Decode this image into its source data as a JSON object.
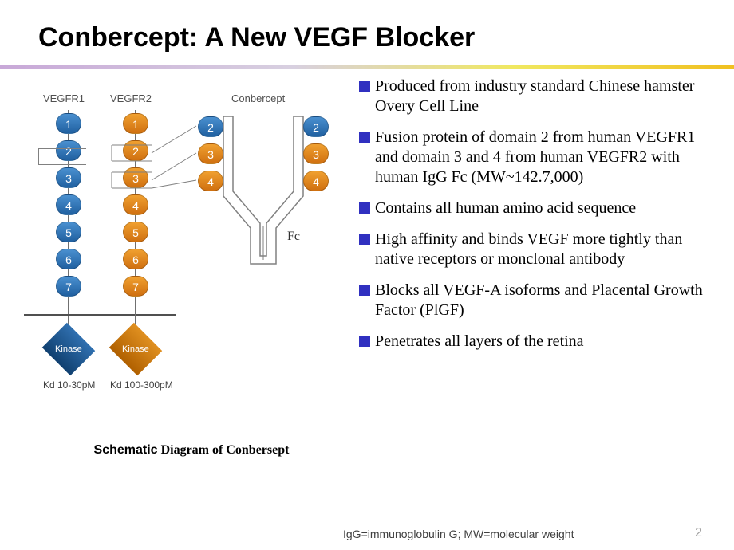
{
  "title": "Conbercept: A New VEGF Blocker",
  "divider_gradient": [
    "#c8a8d8",
    "#d8d0e0",
    "#f0e860",
    "#f0c020"
  ],
  "diagram": {
    "labels": {
      "vegfr1": "VEGFR1",
      "vegfr2": "VEGFR2",
      "conbercept": "Conbercept",
      "fc": "Fc"
    },
    "vegfr1": {
      "domains": [
        "1",
        "2",
        "3",
        "4",
        "5",
        "6",
        "7"
      ],
      "color": "blue",
      "kinase": "Kinase",
      "kd": "Kd 10-30pM"
    },
    "vegfr2": {
      "domains": [
        "1",
        "2",
        "3",
        "4",
        "5",
        "6",
        "7"
      ],
      "color": "orange",
      "kinase": "Kinase",
      "kd": "Kd 100-300pM"
    },
    "conbercept_left": {
      "domains": [
        "2",
        "3",
        "4"
      ],
      "colors": [
        "blue",
        "orange",
        "orange"
      ]
    },
    "conbercept_right": {
      "domains": [
        "2",
        "3",
        "4"
      ],
      "colors": [
        "blue",
        "orange",
        "orange"
      ]
    },
    "colors": {
      "blue": "#2f6fb0",
      "orange": "#e08a20",
      "stem": "#707070",
      "membrane": "#505050"
    },
    "caption_bold": "Schematic",
    "caption_rest": " Diagram  of Conbersept"
  },
  "bullets": [
    "Produced from industry standard Chinese hamster Overy Cell Line",
    "Fusion protein of domain 2 from human VEGFR1 and domain 3 and 4 from human VEGFR2 with human IgG Fc (MW~142.7,000)",
    " Contains all human amino acid sequence",
    " High affinity and binds VEGF more tightly than native receptors or monclonal antibody",
    " Blocks all VEGF-A isoforms and Placental Growth Factor (PlGF)",
    " Penetrates all layers of the retina"
  ],
  "bullet_color": "#3030c0",
  "footnote": "IgG=immunoglobulin  G; MW=molecular  weight",
  "page_number": "2"
}
